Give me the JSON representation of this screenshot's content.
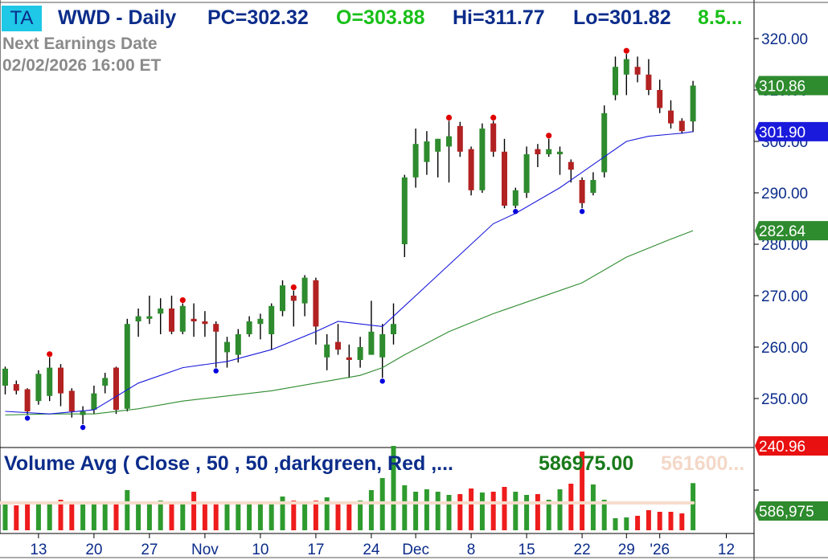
{
  "header": {
    "badge": "TA",
    "symbol_title": "WWD - Daily",
    "pc": "PC=302.32",
    "open": "O=303.88",
    "high": "Hi=311.77",
    "low": "Lo=301.82",
    "change": "8.5..."
  },
  "earnings": {
    "label": "Next Earnings Date",
    "value": "02/02/2026  16:00 ET"
  },
  "volume_panel": {
    "title": "Volume Avg ( Close , 50 , 50 ,darkgreen, Red ,...",
    "value": "586975.00",
    "faded_value": "561600..."
  },
  "price_tags": {
    "last": "310.86",
    "ma_fast": "301.90",
    "ma_slow": "282.64",
    "bottom": "240.96",
    "volume": "586,975"
  },
  "colors": {
    "up": "#2e8b2e",
    "down": "#b22222",
    "ma_fast": "#1a1adc",
    "ma_slow": "#2e8b2e",
    "axis_text": "#0b2c8a",
    "badge_bg": "#1ec8e6"
  },
  "chart_data": [
    {
      "type": "candlestick",
      "title": "WWD - Daily",
      "ylim": [
        240.96,
        321.5
      ],
      "y_ticks": [
        "320.00",
        "310.00",
        "300.00",
        "290.00",
        "280.00",
        "270.00",
        "260.00",
        "250.00"
      ],
      "x_tick_labels": [
        {
          "label": "13",
          "index": 3
        },
        {
          "label": "20",
          "index": 8
        },
        {
          "label": "27",
          "index": 13
        },
        {
          "label": "Nov",
          "index": 18
        },
        {
          "label": "10",
          "index": 23
        },
        {
          "label": "17",
          "index": 28
        },
        {
          "label": "24",
          "index": 33
        },
        {
          "label": "Dec",
          "index": 37
        },
        {
          "label": "8",
          "index": 42
        },
        {
          "label": "15",
          "index": 47
        },
        {
          "label": "22",
          "index": 52
        },
        {
          "label": "29",
          "index": 56
        },
        {
          "label": "'26",
          "index": 59
        },
        {
          "label": "12",
          "index": 65
        }
      ],
      "candles": [
        {
          "o": 252.5,
          "h": 256.2,
          "l": 250.8,
          "c": 255.8
        },
        {
          "o": 252.8,
          "h": 253.5,
          "l": 250.8,
          "c": 251.5
        },
        {
          "o": 251.8,
          "h": 252.0,
          "l": 246.8,
          "c": 247.5
        },
        {
          "o": 249.5,
          "h": 255.5,
          "l": 248.8,
          "c": 254.8
        },
        {
          "o": 250.5,
          "h": 258.0,
          "l": 249.5,
          "c": 256.0
        },
        {
          "o": 256.0,
          "h": 256.7,
          "l": 248.5,
          "c": 251.0
        },
        {
          "o": 251.5,
          "h": 252.0,
          "l": 246.3,
          "c": 247.5
        },
        {
          "o": 246.8,
          "h": 248.5,
          "l": 245.0,
          "c": 247.5
        },
        {
          "o": 247.8,
          "h": 252.5,
          "l": 247.0,
          "c": 251.0
        },
        {
          "o": 252.5,
          "h": 255.0,
          "l": 251.0,
          "c": 254.0
        },
        {
          "o": 256.0,
          "h": 256.2,
          "l": 247.0,
          "c": 247.8
        },
        {
          "o": 248.0,
          "h": 265.5,
          "l": 247.5,
          "c": 264.5
        },
        {
          "o": 265.0,
          "h": 267.5,
          "l": 262.0,
          "c": 266.0
        },
        {
          "o": 265.5,
          "h": 270.0,
          "l": 264.5,
          "c": 266.0
        },
        {
          "o": 266.5,
          "h": 269.5,
          "l": 262.5,
          "c": 267.5
        },
        {
          "o": 267.5,
          "h": 270.0,
          "l": 262.5,
          "c": 263.0
        },
        {
          "o": 263.0,
          "h": 268.5,
          "l": 262.5,
          "c": 268.0
        },
        {
          "o": 265.5,
          "h": 268.5,
          "l": 262.0,
          "c": 265.0
        },
        {
          "o": 265.0,
          "h": 267.0,
          "l": 262.0,
          "c": 264.5
        },
        {
          "o": 264.5,
          "h": 265.0,
          "l": 256.0,
          "c": 263.0
        },
        {
          "o": 259.0,
          "h": 262.0,
          "l": 256.0,
          "c": 261.0
        },
        {
          "o": 258.5,
          "h": 263.5,
          "l": 257.0,
          "c": 262.5
        },
        {
          "o": 262.5,
          "h": 266.0,
          "l": 262.0,
          "c": 265.0
        },
        {
          "o": 264.5,
          "h": 266.5,
          "l": 261.5,
          "c": 265.5
        },
        {
          "o": 262.5,
          "h": 268.5,
          "l": 259.5,
          "c": 268.0
        },
        {
          "o": 267.0,
          "h": 273.0,
          "l": 266.0,
          "c": 272.0
        },
        {
          "o": 270.0,
          "h": 271.0,
          "l": 264.0,
          "c": 269.0
        },
        {
          "o": 268.5,
          "h": 274.0,
          "l": 266.0,
          "c": 273.5
        },
        {
          "o": 273.0,
          "h": 273.5,
          "l": 260.5,
          "c": 264.0
        },
        {
          "o": 258.0,
          "h": 262.5,
          "l": 255.5,
          "c": 260.5
        },
        {
          "o": 261.0,
          "h": 264.5,
          "l": 258.5,
          "c": 259.5
        },
        {
          "o": 258.0,
          "h": 260.5,
          "l": 254.0,
          "c": 257.5
        },
        {
          "o": 257.5,
          "h": 262.0,
          "l": 256.0,
          "c": 260.0
        },
        {
          "o": 258.5,
          "h": 269.0,
          "l": 258.5,
          "c": 263.0
        },
        {
          "o": 258.0,
          "h": 264.5,
          "l": 254.0,
          "c": 262.5
        },
        {
          "o": 262.5,
          "h": 268.5,
          "l": 260.5,
          "c": 264.5
        },
        {
          "o": 280.0,
          "h": 293.5,
          "l": 277.5,
          "c": 293.0
        },
        {
          "o": 293.0,
          "h": 302.5,
          "l": 291.0,
          "c": 299.5
        },
        {
          "o": 296.0,
          "h": 302.0,
          "l": 293.5,
          "c": 300.0
        },
        {
          "o": 298.0,
          "h": 300.5,
          "l": 293.0,
          "c": 300.5
        },
        {
          "o": 299.0,
          "h": 304.0,
          "l": 292.0,
          "c": 301.0
        },
        {
          "o": 303.0,
          "h": 303.8,
          "l": 297.0,
          "c": 298.0
        },
        {
          "o": 298.5,
          "h": 299.0,
          "l": 289.5,
          "c": 290.5
        },
        {
          "o": 290.5,
          "h": 303.5,
          "l": 290.0,
          "c": 302.5
        },
        {
          "o": 303.5,
          "h": 304.0,
          "l": 297.0,
          "c": 298.0
        },
        {
          "o": 298.0,
          "h": 300.5,
          "l": 287.0,
          "c": 287.5
        },
        {
          "o": 287.5,
          "h": 291.0,
          "l": 287.0,
          "c": 290.5
        },
        {
          "o": 290.0,
          "h": 299.0,
          "l": 289.0,
          "c": 297.5
        },
        {
          "o": 298.5,
          "h": 299.5,
          "l": 295.0,
          "c": 297.5
        },
        {
          "o": 297.5,
          "h": 300.5,
          "l": 297.0,
          "c": 298.5
        },
        {
          "o": 297.5,
          "h": 299.0,
          "l": 293.5,
          "c": 298.0
        },
        {
          "o": 296.0,
          "h": 296.5,
          "l": 292.0,
          "c": 294.5
        },
        {
          "o": 292.5,
          "h": 293.0,
          "l": 287.0,
          "c": 288.0
        },
        {
          "o": 290.0,
          "h": 294.0,
          "l": 289.5,
          "c": 292.5
        },
        {
          "o": 294.0,
          "h": 307.0,
          "l": 293.0,
          "c": 305.5
        },
        {
          "o": 309.0,
          "h": 316.5,
          "l": 308.0,
          "c": 314.5
        },
        {
          "o": 313.0,
          "h": 317.0,
          "l": 309.0,
          "c": 316.0
        },
        {
          "o": 314.5,
          "h": 316.5,
          "l": 311.5,
          "c": 313.0
        },
        {
          "o": 313.0,
          "h": 316.0,
          "l": 309.0,
          "c": 310.0
        },
        {
          "o": 310.0,
          "h": 312.0,
          "l": 305.5,
          "c": 306.5
        },
        {
          "o": 306.0,
          "h": 308.0,
          "l": 302.5,
          "c": 303.5
        },
        {
          "o": 304.0,
          "h": 304.5,
          "l": 301.5,
          "c": 302.0
        },
        {
          "o": 303.88,
          "h": 311.77,
          "l": 301.82,
          "c": 310.86
        }
      ],
      "swing_highs": [
        4,
        16,
        26,
        40,
        44,
        49,
        56
      ],
      "swing_lows": [
        2,
        7,
        19,
        34,
        46,
        52
      ],
      "ma_fast": [
        [
          0,
          247.5
        ],
        [
          4,
          247.0
        ],
        [
          8,
          247.8
        ],
        [
          12,
          253.0
        ],
        [
          16,
          256.0
        ],
        [
          20,
          257.2
        ],
        [
          24,
          259.5
        ],
        [
          28,
          263.0
        ],
        [
          30,
          265.0
        ],
        [
          32,
          264.5
        ],
        [
          34,
          264.0
        ],
        [
          36,
          268.0
        ],
        [
          40,
          276.0
        ],
        [
          42,
          280.0
        ],
        [
          44,
          284.0
        ],
        [
          46,
          286.0
        ],
        [
          48,
          288.5
        ],
        [
          50,
          291.0
        ],
        [
          52,
          294.0
        ],
        [
          54,
          297.0
        ],
        [
          56,
          300.0
        ],
        [
          58,
          301.0
        ],
        [
          60,
          301.4
        ],
        [
          61,
          301.6
        ],
        [
          62,
          301.9
        ]
      ],
      "ma_slow": [
        [
          0,
          246.8
        ],
        [
          4,
          247.0
        ],
        [
          8,
          247.0
        ],
        [
          12,
          248.0
        ],
        [
          16,
          249.5
        ],
        [
          20,
          250.5
        ],
        [
          24,
          251.5
        ],
        [
          28,
          253.0
        ],
        [
          32,
          254.5
        ],
        [
          34,
          256.0
        ],
        [
          36,
          258.5
        ],
        [
          40,
          263.0
        ],
        [
          44,
          266.5
        ],
        [
          48,
          269.5
        ],
        [
          52,
          272.5
        ],
        [
          56,
          277.5
        ],
        [
          60,
          281.0
        ],
        [
          62,
          282.64
        ]
      ]
    },
    {
      "type": "bar",
      "title": "Volume Avg ( Close , 50 , 50 ,darkgreen, Red ,...",
      "ylim": [
        0,
        1000000
      ],
      "volumes": [
        320000,
        310000,
        330000,
        340000,
        360000,
        380000,
        330000,
        320000,
        350000,
        360000,
        340000,
        500000,
        330000,
        360000,
        370000,
        340000,
        350000,
        480000,
        350000,
        340000,
        330000,
        340000,
        350000,
        330000,
        360000,
        420000,
        370000,
        350000,
        370000,
        410000,
        350000,
        340000,
        370000,
        500000,
        650000,
        1050000,
        560000,
        480000,
        510000,
        480000,
        440000,
        450000,
        520000,
        470000,
        480000,
        540000,
        480000,
        440000,
        450000,
        380000,
        510000,
        580000,
        980000,
        570000,
        380000,
        150000,
        160000,
        180000,
        250000,
        230000,
        230000,
        210000,
        586975
      ],
      "vol_avg": 561600
    }
  ]
}
